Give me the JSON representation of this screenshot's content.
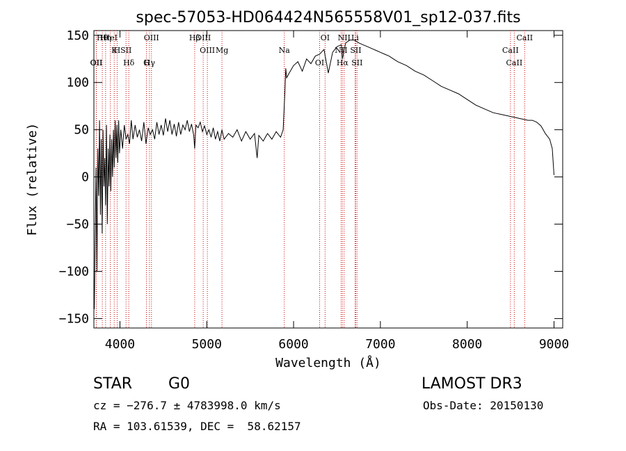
{
  "chart_data": {
    "type": "line",
    "title": "spec-57053-HD064424N565558V01_sp12-037.fits",
    "xlabel": "Wavelength (Å)",
    "ylabel": "Flux (relative)",
    "xlim": [
      3700,
      9100
    ],
    "ylim": [
      -160,
      155
    ],
    "x_ticks": [
      4000,
      5000,
      6000,
      7000,
      8000,
      9000
    ],
    "y_ticks": [
      -150,
      -100,
      -50,
      0,
      50,
      100,
      150
    ],
    "line_color": "#000000",
    "marker_color": "#cc0000",
    "series": [
      {
        "name": "flux",
        "x": [
          3705,
          3715,
          3725,
          3735,
          3745,
          3755,
          3765,
          3775,
          3785,
          3795,
          3805,
          3815,
          3825,
          3835,
          3845,
          3855,
          3865,
          3875,
          3885,
          3895,
          3905,
          3915,
          3925,
          3935,
          3945,
          3955,
          3965,
          3975,
          3985,
          3995,
          4010,
          4030,
          4050,
          4070,
          4090,
          4110,
          4130,
          4150,
          4175,
          4200,
          4225,
          4250,
          4275,
          4300,
          4325,
          4350,
          4375,
          4400,
          4425,
          4450,
          4475,
          4500,
          4525,
          4550,
          4575,
          4600,
          4625,
          4650,
          4675,
          4700,
          4725,
          4750,
          4775,
          4800,
          4825,
          4850,
          4861,
          4875,
          4900,
          4925,
          4950,
          4975,
          5000,
          5025,
          5050,
          5075,
          5100,
          5125,
          5150,
          5175,
          5200,
          5250,
          5300,
          5350,
          5400,
          5450,
          5500,
          5550,
          5580,
          5600,
          5650,
          5700,
          5750,
          5800,
          5850,
          5880,
          5900,
          5910,
          5920,
          5950,
          6000,
          6050,
          6100,
          6150,
          6200,
          6250,
          6300,
          6350,
          6400,
          6450,
          6500,
          6550,
          6563,
          6600,
          6650,
          6700,
          6750,
          6800,
          6850,
          6900,
          6950,
          7000,
          7050,
          7100,
          7150,
          7200,
          7300,
          7400,
          7500,
          7600,
          7700,
          7800,
          7900,
          8000,
          8100,
          8200,
          8300,
          8400,
          8500,
          8600,
          8700,
          8750,
          8800,
          8850,
          8900,
          8950,
          8980,
          9000
        ],
        "values": [
          -140,
          -60,
          10,
          -100,
          30,
          -20,
          60,
          -40,
          40,
          -60,
          50,
          -10,
          20,
          -30,
          55,
          -50,
          30,
          -10,
          45,
          -15,
          40,
          0,
          50,
          10,
          60,
          20,
          55,
          15,
          60,
          25,
          50,
          30,
          55,
          40,
          45,
          35,
          60,
          40,
          55,
          42,
          50,
          38,
          58,
          35,
          52,
          45,
          50,
          40,
          58,
          45,
          55,
          44,
          62,
          48,
          60,
          45,
          56,
          43,
          58,
          45,
          55,
          50,
          60,
          48,
          56,
          44,
          30,
          55,
          52,
          58,
          48,
          54,
          45,
          50,
          42,
          52,
          40,
          48,
          38,
          50,
          40,
          46,
          42,
          50,
          38,
          48,
          40,
          46,
          20,
          44,
          38,
          46,
          40,
          48,
          42,
          50,
          90,
          115,
          105,
          110,
          118,
          122,
          112,
          125,
          120,
          128,
          130,
          135,
          110,
          132,
          138,
          140,
          125,
          142,
          145,
          145,
          142,
          140,
          138,
          136,
          134,
          132,
          130,
          128,
          125,
          122,
          118,
          112,
          108,
          102,
          96,
          92,
          88,
          82,
          76,
          72,
          68,
          66,
          64,
          62,
          60,
          60,
          58,
          54,
          46,
          40,
          30,
          2
        ]
      }
    ],
    "line_markers": [
      {
        "name": "Hθ",
        "wavelength": 3797
      },
      {
        "name": "K",
        "wavelength": 3934
      },
      {
        "name": "Hδ",
        "wavelength": 4102
      },
      {
        "name": "OIII",
        "wavelength": 4363
      },
      {
        "name": "OIII",
        "wavelength": 5007
      },
      {
        "name": "OII",
        "wavelength": 3727
      },
      {
        "name": "HeI",
        "wavelength": 3889
      },
      {
        "name": "SII",
        "wavelength": 4070
      },
      {
        "name": "Hγ",
        "wavelength": 4340
      },
      {
        "name": "OIII",
        "wavelength": 4959
      },
      {
        "name": "Na",
        "wavelength": 5893
      },
      {
        "name": "OII",
        "wavelength": 3729
      },
      {
        "name": "Hη",
        "wavelength": 3835
      },
      {
        "name": "H",
        "wavelength": 3968
      },
      {
        "name": "G",
        "wavelength": 4305
      },
      {
        "name": "Hβ",
        "wavelength": 4861
      },
      {
        "name": "Mg",
        "wavelength": 5175
      },
      {
        "name": "OI",
        "wavelength": 6300
      },
      {
        "name": "OI",
        "wavelength": 6363
      },
      {
        "name": "NII",
        "wavelength": 6548
      },
      {
        "name": "Hα",
        "wavelength": 6563
      },
      {
        "name": "NII",
        "wavelength": 6583
      },
      {
        "name": "SII",
        "wavelength": 6716
      },
      {
        "name": "SII",
        "wavelength": 6731
      },
      {
        "name": "Li",
        "wavelength": 6708
      },
      {
        "name": "CaII",
        "wavelength": 8498
      },
      {
        "name": "CaII",
        "wavelength": 8542
      },
      {
        "name": "CaII",
        "wavelength": 8662
      }
    ]
  },
  "info": {
    "class_label": "STAR",
    "subclass": "G0",
    "survey": "LAMOST DR3",
    "cz_text": "cz = −276.7 ± 4783998.0 km/s",
    "obs_date": "Obs-Date: 20150130",
    "coords": "RA = 103.61539, DEC =  58.62157"
  }
}
